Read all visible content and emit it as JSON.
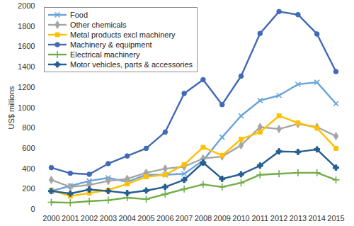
{
  "chart_data": {
    "type": "line",
    "y_label": "US$ millions",
    "x": [
      2000,
      2001,
      2002,
      2003,
      2004,
      2005,
      2006,
      2007,
      2008,
      2009,
      2010,
      2011,
      2012,
      2013,
      2014,
      2015
    ],
    "xlim": [
      2000,
      2015
    ],
    "xticks": [
      2000,
      2001,
      2002,
      2003,
      2004,
      2005,
      2006,
      2007,
      2008,
      2009,
      2010,
      2011,
      2012,
      2013,
      2014,
      2015
    ],
    "ylim": [
      0,
      2000
    ],
    "yticks": [
      0,
      200,
      400,
      600,
      800,
      1000,
      1200,
      1400,
      1600,
      1800,
      2000
    ],
    "grid": false,
    "legend": "top-left",
    "series": [
      {
        "name": "Food",
        "color": "#6aa3d9",
        "marker": "times",
        "values": [
          180,
          230,
          280,
          310,
          270,
          340,
          340,
          350,
          480,
          710,
          920,
          1070,
          1120,
          1230,
          1250,
          1040
        ]
      },
      {
        "name": "Other chemicals",
        "color": "#a5a5a5",
        "marker": "diamond",
        "values": [
          290,
          220,
          240,
          280,
          300,
          360,
          400,
          420,
          500,
          520,
          630,
          810,
          790,
          840,
          810,
          720
        ]
      },
      {
        "name": "Metal products excl machinery",
        "color": "#ffc000",
        "marker": "square",
        "values": [
          190,
          130,
          160,
          190,
          250,
          320,
          340,
          440,
          610,
          530,
          690,
          760,
          920,
          850,
          800,
          600
        ]
      },
      {
        "name": "Machinery & equipment",
        "color": "#4169b5",
        "marker": "circle",
        "values": [
          410,
          355,
          345,
          450,
          525,
          600,
          760,
          1140,
          1275,
          1030,
          1310,
          1730,
          1945,
          1915,
          1725,
          1355
        ]
      },
      {
        "name": "Electrical machinery",
        "color": "#70ad47",
        "marker": "plus",
        "values": [
          70,
          65,
          80,
          90,
          115,
          100,
          150,
          200,
          245,
          220,
          260,
          340,
          350,
          360,
          360,
          290
        ]
      },
      {
        "name": "Motor vehicles, parts & accessories",
        "color": "#255e91",
        "marker": "cross",
        "values": [
          180,
          155,
          195,
          180,
          160,
          185,
          220,
          290,
          460,
          300,
          345,
          430,
          570,
          565,
          590,
          410
        ]
      }
    ]
  }
}
